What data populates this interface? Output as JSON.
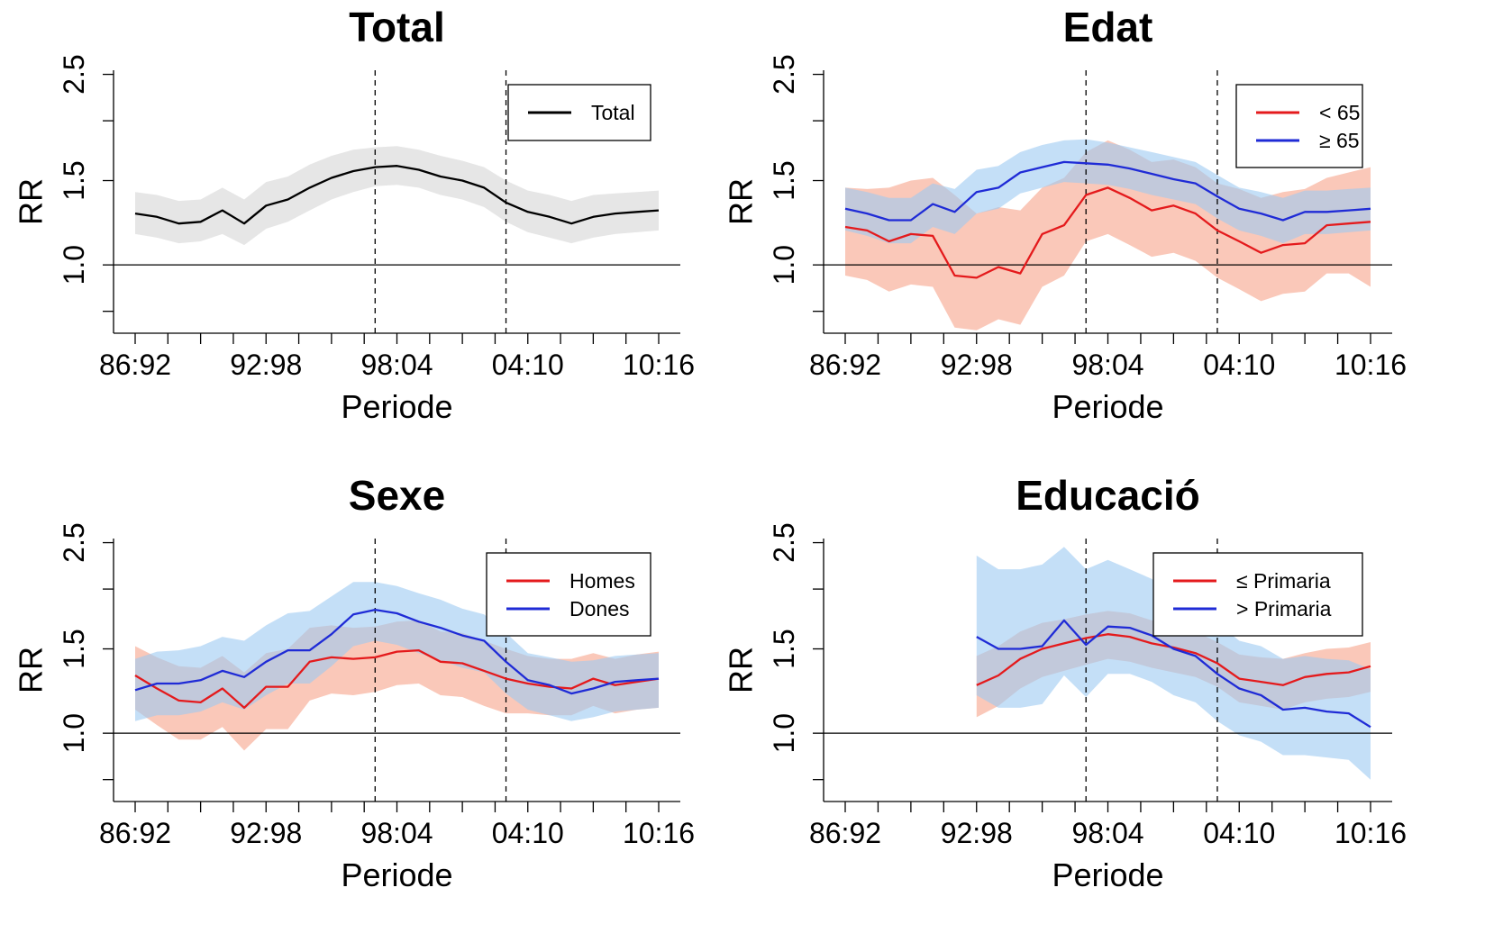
{
  "chart_data": [
    {
      "type": "line",
      "title": "Total",
      "xlabel": "Periode",
      "ylabel": "RR",
      "x_ticks": [
        "86:92",
        "92:98",
        "98:04",
        "04:10",
        "10:16"
      ],
      "y_ticks": [
        "1.0",
        "1.5",
        "2.5"
      ],
      "ylim": [
        0.72,
        2.55
      ],
      "log_scale_y": true,
      "x_range": [
        0,
        24
      ],
      "reference_line_y": 1.0,
      "vlines_x": [
        11,
        17
      ],
      "legend_position": "top-right",
      "series": [
        {
          "name": "Total",
          "color": "#000000",
          "band_color": "#e6e6e6",
          "x": [
            0,
            1,
            2,
            3,
            4,
            5,
            6,
            7,
            8,
            9,
            10,
            11,
            12,
            13,
            14,
            15,
            16,
            17,
            18,
            19,
            20,
            21,
            22,
            23,
            24
          ],
          "values": [
            1.28,
            1.26,
            1.22,
            1.23,
            1.3,
            1.22,
            1.33,
            1.37,
            1.45,
            1.52,
            1.57,
            1.6,
            1.61,
            1.58,
            1.53,
            1.5,
            1.45,
            1.35,
            1.29,
            1.26,
            1.22,
            1.26,
            1.28,
            1.29,
            1.3
          ],
          "lower": [
            1.16,
            1.14,
            1.11,
            1.12,
            1.16,
            1.1,
            1.19,
            1.23,
            1.3,
            1.37,
            1.42,
            1.46,
            1.47,
            1.45,
            1.4,
            1.37,
            1.32,
            1.23,
            1.17,
            1.14,
            1.11,
            1.14,
            1.16,
            1.17,
            1.18
          ],
          "upper": [
            1.42,
            1.4,
            1.36,
            1.37,
            1.45,
            1.37,
            1.49,
            1.53,
            1.62,
            1.69,
            1.74,
            1.76,
            1.77,
            1.74,
            1.69,
            1.65,
            1.6,
            1.5,
            1.43,
            1.4,
            1.36,
            1.4,
            1.41,
            1.42,
            1.43
          ]
        }
      ]
    },
    {
      "type": "line",
      "title": "Edat",
      "xlabel": "Periode",
      "ylabel": "RR",
      "x_ticks": [
        "86:92",
        "92:98",
        "98:04",
        "04:10",
        "10:16"
      ],
      "y_ticks": [
        "1.0",
        "1.5",
        "2.5"
      ],
      "ylim": [
        0.72,
        2.55
      ],
      "log_scale_y": true,
      "x_range": [
        0,
        24
      ],
      "reference_line_y": 1.0,
      "vlines_x": [
        11,
        17
      ],
      "legend_position": "top-right",
      "series": [
        {
          "name": "< 65",
          "color": "#e41a1c",
          "band_color": "#f7a48a",
          "x": [
            0,
            1,
            2,
            3,
            4,
            5,
            6,
            7,
            8,
            9,
            10,
            11,
            12,
            13,
            14,
            15,
            16,
            17,
            18,
            19,
            20,
            21,
            22,
            23,
            24
          ],
          "values": [
            1.2,
            1.18,
            1.12,
            1.16,
            1.15,
            0.95,
            0.94,
            0.99,
            0.96,
            1.16,
            1.21,
            1.4,
            1.45,
            1.38,
            1.3,
            1.33,
            1.28,
            1.18,
            1.12,
            1.06,
            1.1,
            1.11,
            1.21,
            1.22,
            1.23
          ],
          "lower": [
            0.95,
            0.93,
            0.88,
            0.91,
            0.9,
            0.74,
            0.73,
            0.77,
            0.75,
            0.9,
            0.95,
            1.12,
            1.16,
            1.1,
            1.04,
            1.06,
            1.02,
            0.94,
            0.89,
            0.84,
            0.87,
            0.88,
            0.96,
            0.96,
            0.9
          ],
          "upper": [
            1.45,
            1.44,
            1.45,
            1.5,
            1.52,
            1.4,
            1.28,
            1.32,
            1.3,
            1.45,
            1.52,
            1.72,
            1.82,
            1.74,
            1.64,
            1.66,
            1.6,
            1.48,
            1.44,
            1.38,
            1.42,
            1.44,
            1.52,
            1.56,
            1.6
          ]
        },
        {
          "name": "≥ 65",
          "color": "#1f2bd6",
          "band_color": "#9ccaf2",
          "x": [
            0,
            1,
            2,
            3,
            4,
            5,
            6,
            7,
            8,
            9,
            10,
            11,
            12,
            13,
            14,
            15,
            16,
            17,
            18,
            19,
            20,
            21,
            22,
            23,
            24
          ],
          "values": [
            1.31,
            1.28,
            1.24,
            1.24,
            1.34,
            1.29,
            1.42,
            1.45,
            1.56,
            1.6,
            1.64,
            1.63,
            1.62,
            1.59,
            1.55,
            1.51,
            1.48,
            1.39,
            1.31,
            1.28,
            1.24,
            1.29,
            1.29,
            1.3,
            1.31
          ],
          "lower": [
            1.18,
            1.15,
            1.11,
            1.11,
            1.2,
            1.16,
            1.28,
            1.31,
            1.41,
            1.45,
            1.49,
            1.48,
            1.47,
            1.44,
            1.4,
            1.37,
            1.34,
            1.25,
            1.18,
            1.15,
            1.11,
            1.16,
            1.16,
            1.17,
            1.18
          ],
          "upper": [
            1.45,
            1.42,
            1.38,
            1.38,
            1.48,
            1.44,
            1.58,
            1.61,
            1.72,
            1.78,
            1.82,
            1.83,
            1.8,
            1.76,
            1.72,
            1.68,
            1.64,
            1.54,
            1.45,
            1.42,
            1.38,
            1.43,
            1.43,
            1.44,
            1.45
          ]
        }
      ]
    },
    {
      "type": "line",
      "title": "Sexe",
      "xlabel": "Periode",
      "ylabel": "RR",
      "x_ticks": [
        "86:92",
        "92:98",
        "98:04",
        "04:10",
        "10:16"
      ],
      "y_ticks": [
        "1.0",
        "1.5",
        "2.5"
      ],
      "ylim": [
        0.72,
        2.55
      ],
      "log_scale_y": true,
      "x_range": [
        0,
        24
      ],
      "reference_line_y": 1.0,
      "vlines_x": [
        11,
        17
      ],
      "legend_position": "top-right",
      "series": [
        {
          "name": "Homes",
          "color": "#e41a1c",
          "band_color": "#f7a48a",
          "x": [
            0,
            1,
            2,
            3,
            4,
            5,
            6,
            7,
            8,
            9,
            10,
            11,
            12,
            13,
            14,
            15,
            16,
            17,
            18,
            19,
            20,
            21,
            22,
            23,
            24
          ],
          "values": [
            1.32,
            1.24,
            1.17,
            1.16,
            1.24,
            1.13,
            1.25,
            1.25,
            1.41,
            1.44,
            1.43,
            1.44,
            1.48,
            1.49,
            1.41,
            1.4,
            1.35,
            1.3,
            1.27,
            1.25,
            1.24,
            1.3,
            1.26,
            1.28,
            1.3
          ],
          "lower": [
            1.12,
            1.04,
            0.97,
            0.97,
            1.03,
            0.92,
            1.02,
            1.02,
            1.17,
            1.21,
            1.2,
            1.22,
            1.26,
            1.27,
            1.2,
            1.19,
            1.14,
            1.1,
            1.1,
            1.09,
            1.09,
            1.14,
            1.1,
            1.12,
            1.13
          ],
          "upper": [
            1.52,
            1.44,
            1.38,
            1.37,
            1.45,
            1.34,
            1.47,
            1.5,
            1.66,
            1.68,
            1.66,
            1.67,
            1.71,
            1.72,
            1.63,
            1.62,
            1.56,
            1.5,
            1.45,
            1.43,
            1.43,
            1.47,
            1.43,
            1.46,
            1.48
          ]
        },
        {
          "name": "Dones",
          "color": "#1f2bd6",
          "band_color": "#9ccaf2",
          "x": [
            0,
            1,
            2,
            3,
            4,
            5,
            6,
            7,
            8,
            9,
            10,
            11,
            12,
            13,
            14,
            15,
            16,
            17,
            18,
            19,
            20,
            21,
            22,
            23,
            24
          ],
          "values": [
            1.23,
            1.27,
            1.27,
            1.29,
            1.35,
            1.31,
            1.41,
            1.49,
            1.49,
            1.61,
            1.77,
            1.81,
            1.78,
            1.71,
            1.66,
            1.6,
            1.56,
            1.41,
            1.29,
            1.26,
            1.21,
            1.24,
            1.28,
            1.29,
            1.3
          ],
          "lower": [
            1.06,
            1.09,
            1.09,
            1.11,
            1.16,
            1.12,
            1.2,
            1.27,
            1.27,
            1.38,
            1.52,
            1.56,
            1.53,
            1.47,
            1.42,
            1.37,
            1.34,
            1.21,
            1.12,
            1.09,
            1.06,
            1.08,
            1.11,
            1.12,
            1.13
          ],
          "upper": [
            1.43,
            1.48,
            1.49,
            1.52,
            1.59,
            1.56,
            1.68,
            1.78,
            1.8,
            1.93,
            2.07,
            2.07,
            2.03,
            1.96,
            1.9,
            1.82,
            1.77,
            1.62,
            1.47,
            1.44,
            1.41,
            1.42,
            1.45,
            1.46,
            1.47
          ]
        }
      ]
    },
    {
      "type": "line",
      "title": "Educació",
      "xlabel": "Periode",
      "ylabel": "RR",
      "x_ticks": [
        "86:92",
        "92:98",
        "98:04",
        "04:10",
        "10:16"
      ],
      "y_ticks": [
        "1.0",
        "1.5",
        "2.5"
      ],
      "ylim": [
        0.72,
        2.55
      ],
      "log_scale_y": true,
      "x_range": [
        0,
        24
      ],
      "reference_line_y": 1.0,
      "vlines_x": [
        11,
        17
      ],
      "legend_position": "top-right",
      "series": [
        {
          "name": "≤ Primaria",
          "color": "#e41a1c",
          "band_color": "#f7a48a",
          "x": [
            6,
            7,
            8,
            9,
            10,
            11,
            12,
            13,
            14,
            15,
            16,
            17,
            18,
            19,
            20,
            21,
            22,
            23,
            24
          ],
          "values": [
            1.26,
            1.32,
            1.43,
            1.5,
            1.54,
            1.58,
            1.61,
            1.59,
            1.54,
            1.51,
            1.47,
            1.4,
            1.3,
            1.28,
            1.26,
            1.31,
            1.33,
            1.34,
            1.38
          ],
          "lower": [
            1.08,
            1.14,
            1.24,
            1.31,
            1.35,
            1.39,
            1.43,
            1.41,
            1.37,
            1.34,
            1.31,
            1.25,
            1.16,
            1.14,
            1.12,
            1.16,
            1.18,
            1.19,
            1.22
          ],
          "upper": [
            1.45,
            1.52,
            1.63,
            1.7,
            1.73,
            1.77,
            1.8,
            1.78,
            1.72,
            1.68,
            1.63,
            1.55,
            1.46,
            1.44,
            1.43,
            1.47,
            1.5,
            1.51,
            1.55
          ]
        },
        {
          "name": "> Primaria",
          "color": "#1f2bd6",
          "band_color": "#9ccaf2",
          "x": [
            6,
            7,
            8,
            9,
            10,
            11,
            12,
            13,
            14,
            15,
            16,
            17,
            18,
            19,
            20,
            21,
            22,
            23,
            24
          ],
          "values": [
            1.59,
            1.5,
            1.5,
            1.52,
            1.72,
            1.53,
            1.67,
            1.66,
            1.6,
            1.5,
            1.45,
            1.33,
            1.24,
            1.2,
            1.12,
            1.13,
            1.11,
            1.1,
            1.03
          ],
          "lower": [
            1.2,
            1.13,
            1.13,
            1.15,
            1.32,
            1.19,
            1.33,
            1.33,
            1.28,
            1.2,
            1.16,
            1.06,
            0.99,
            0.96,
            0.9,
            0.9,
            0.89,
            0.88,
            0.8
          ],
          "upper": [
            2.35,
            2.2,
            2.2,
            2.25,
            2.45,
            2.2,
            2.3,
            2.2,
            2.1,
            1.95,
            1.85,
            1.7,
            1.56,
            1.52,
            1.43,
            1.45,
            1.43,
            1.42,
            1.36
          ]
        }
      ]
    }
  ]
}
